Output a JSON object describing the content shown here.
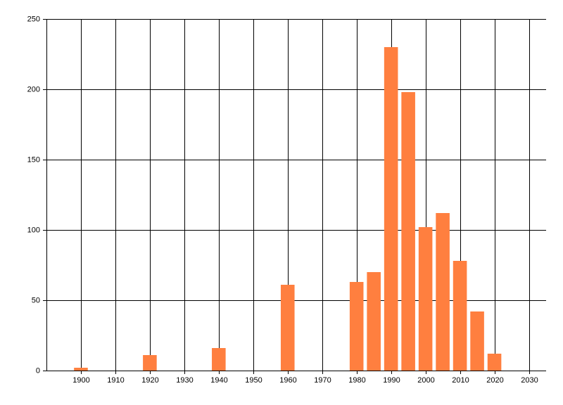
{
  "chart_data": {
    "type": "bar",
    "x": [
      1900,
      1920,
      1940,
      1960,
      1980,
      1985,
      1990,
      1995,
      2000,
      2005,
      2010,
      2015,
      2020
    ],
    "values": [
      2,
      11,
      16,
      61,
      63,
      70,
      230,
      198,
      102,
      112,
      78,
      42,
      12
    ],
    "color": "#ff7f3f",
    "xlim": [
      1890,
      2035
    ],
    "xticks": [
      1900,
      1910,
      1920,
      1930,
      1940,
      1950,
      1960,
      1970,
      1980,
      1990,
      2000,
      2010,
      2020,
      2030
    ],
    "ylim": [
      0,
      250
    ],
    "yticks": [
      0,
      50,
      100,
      150,
      200,
      250
    ],
    "bar_width": 4,
    "grid": true
  }
}
